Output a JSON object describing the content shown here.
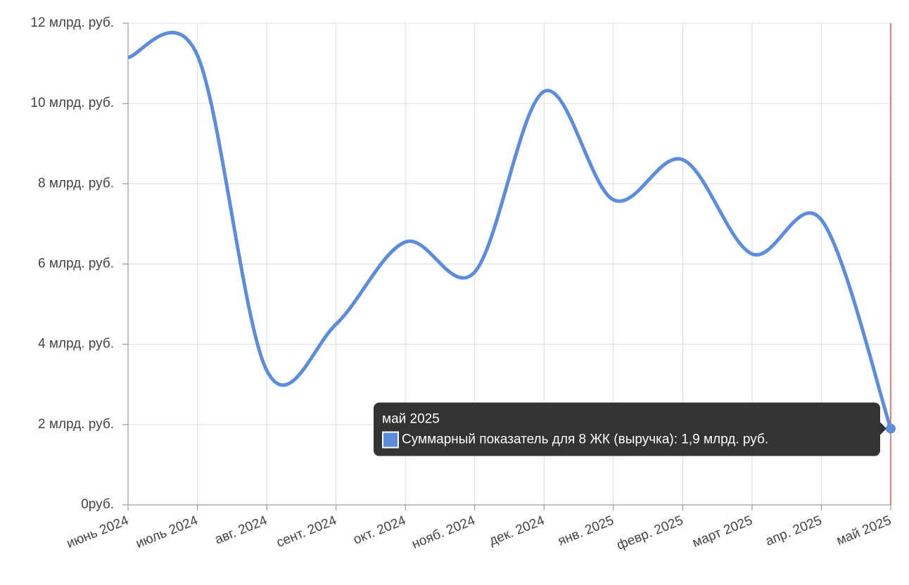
{
  "chart_data": {
    "type": "line",
    "categories": [
      "июнь 2024",
      "июль 2024",
      "авг. 2024",
      "сент. 2024",
      "окт. 2024",
      "нояб. 2024",
      "дек. 2024",
      "янв. 2025",
      "февр. 2025",
      "март 2025",
      "апр. 2025",
      "май 2025"
    ],
    "series": [
      {
        "name": "Суммарный показатель для 8 ЖК (выручка)",
        "color": "#5b8ddc",
        "values": [
          11.15,
          11.2,
          3.35,
          4.5,
          6.55,
          5.8,
          10.3,
          7.6,
          8.6,
          6.25,
          7.1,
          1.9
        ]
      }
    ],
    "ylim": [
      0,
      12
    ],
    "yticks": [
      {
        "value": 0,
        "label": "0руб."
      },
      {
        "value": 2,
        "label": "2 млрд. руб."
      },
      {
        "value": 4,
        "label": "4 млрд. руб."
      },
      {
        "value": 6,
        "label": "6 млрд. руб."
      },
      {
        "value": 8,
        "label": "8 млрд. руб."
      },
      {
        "value": 10,
        "label": "10 млрд. руб."
      },
      {
        "value": 12,
        "label": "12 млрд. руб."
      }
    ],
    "grid": true,
    "tooltip_text": "Суммарный показатель для 8 ЖК (выручка): 1,9 млрд. руб."
  }
}
